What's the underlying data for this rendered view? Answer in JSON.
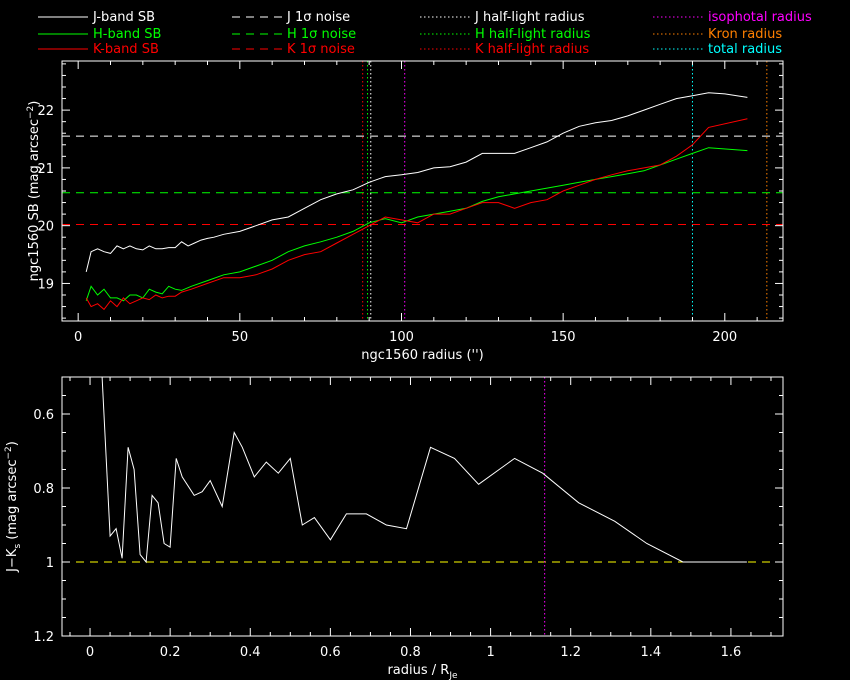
{
  "legend": [
    {
      "label": "J-band SB",
      "color": "#ffffff",
      "dash": "solid"
    },
    {
      "label": "H-band SB",
      "color": "#00ff00",
      "dash": "solid"
    },
    {
      "label": "K-band SB",
      "color": "#ff0000",
      "dash": "solid"
    },
    {
      "label": "J 1σ noise",
      "color": "#ffffff",
      "dash": "dashed"
    },
    {
      "label": "H 1σ noise",
      "color": "#00ff00",
      "dash": "dashed"
    },
    {
      "label": "K 1σ noise",
      "color": "#ff0000",
      "dash": "dashed"
    },
    {
      "label": "J half-light radius",
      "color": "#ffffff",
      "dash": "dotted"
    },
    {
      "label": "H half-light radius",
      "color": "#00ff00",
      "dash": "dotted"
    },
    {
      "label": "K half-light radius",
      "color": "#ff0000",
      "dash": "dotted"
    },
    {
      "label": "isophotal radius",
      "color": "#ff00ff",
      "dash": "dotted"
    },
    {
      "label": "Kron radius",
      "color": "#ff8000",
      "dash": "dotted"
    },
    {
      "label": "total radius",
      "color": "#00ffff",
      "dash": "dotted"
    }
  ],
  "chart_data": [
    {
      "type": "line",
      "xlabel": "ngc1560 radius ('')",
      "ylabel_main": "ngc1560 SB (mag arcsec",
      "ylabel_sup": "−2",
      "ylabel_close": ")",
      "xlim": [
        -5,
        218
      ],
      "ylim": [
        22.85,
        18.35
      ],
      "inverted_y": true,
      "xticks": [
        0,
        50,
        100,
        150,
        200
      ],
      "yticks": [
        19,
        20,
        21,
        22
      ],
      "series": [
        {
          "name": "J-band SB",
          "color": "#ffffff",
          "x": [
            2.5,
            4,
            6,
            8,
            10,
            12,
            14,
            16,
            18,
            20,
            22,
            24,
            26,
            28,
            30,
            32,
            34,
            36,
            38,
            40,
            42,
            45,
            50,
            55,
            60,
            65,
            70,
            75,
            80,
            85,
            90,
            95,
            100,
            105,
            110,
            115,
            120,
            125,
            130,
            135,
            140,
            145,
            150,
            155,
            160,
            165,
            170,
            175,
            180,
            185,
            190,
            195,
            200,
            207
          ],
          "y": [
            19.2,
            19.55,
            19.6,
            19.55,
            19.52,
            19.65,
            19.6,
            19.65,
            19.6,
            19.58,
            19.65,
            19.6,
            19.6,
            19.62,
            19.62,
            19.72,
            19.65,
            19.7,
            19.75,
            19.78,
            19.8,
            19.85,
            19.9,
            20.0,
            20.1,
            20.15,
            20.3,
            20.45,
            20.55,
            20.62,
            20.75,
            20.85,
            20.88,
            20.92,
            21.0,
            21.02,
            21.1,
            21.25,
            21.25,
            21.25,
            21.35,
            21.45,
            21.6,
            21.72,
            21.78,
            21.82,
            21.9,
            22.0,
            22.1,
            22.2,
            22.25,
            22.3,
            22.28,
            22.22
          ]
        },
        {
          "name": "H-band SB",
          "color": "#00ff00",
          "x": [
            2.5,
            4,
            6,
            8,
            10,
            12,
            14,
            16,
            18,
            20,
            22,
            24,
            26,
            28,
            30,
            32,
            35,
            40,
            45,
            50,
            55,
            60,
            65,
            70,
            75,
            80,
            85,
            90,
            95,
            100,
            105,
            110,
            115,
            120,
            125,
            130,
            135,
            140,
            145,
            150,
            155,
            160,
            165,
            170,
            175,
            180,
            185,
            190,
            195,
            207
          ],
          "y": [
            18.7,
            18.95,
            18.8,
            18.9,
            18.75,
            18.75,
            18.7,
            18.8,
            18.8,
            18.75,
            18.9,
            18.85,
            18.82,
            18.95,
            18.9,
            18.88,
            18.95,
            19.05,
            19.15,
            19.2,
            19.3,
            19.4,
            19.55,
            19.65,
            19.72,
            19.8,
            19.9,
            20.05,
            20.12,
            20.05,
            20.15,
            20.2,
            20.25,
            20.3,
            20.42,
            20.5,
            20.55,
            20.6,
            20.65,
            20.7,
            20.75,
            20.8,
            20.85,
            20.9,
            20.95,
            21.05,
            21.15,
            21.25,
            21.35,
            21.3
          ]
        },
        {
          "name": "K-band SB",
          "color": "#ff0000",
          "x": [
            2.5,
            4,
            6,
            8,
            10,
            12,
            14,
            16,
            18,
            20,
            22,
            24,
            26,
            28,
            30,
            32,
            35,
            40,
            45,
            50,
            55,
            60,
            65,
            70,
            75,
            80,
            85,
            90,
            95,
            100,
            105,
            110,
            115,
            120,
            125,
            130,
            135,
            140,
            145,
            150,
            155,
            160,
            165,
            170,
            175,
            180,
            185,
            190,
            195,
            207
          ],
          "y": [
            18.75,
            18.6,
            18.65,
            18.55,
            18.7,
            18.6,
            18.75,
            18.65,
            18.7,
            18.75,
            18.72,
            18.8,
            18.75,
            18.78,
            18.78,
            18.85,
            18.9,
            19.0,
            19.1,
            19.1,
            19.15,
            19.25,
            19.4,
            19.5,
            19.55,
            19.7,
            19.85,
            20.0,
            20.15,
            20.1,
            20.05,
            20.2,
            20.2,
            20.3,
            20.4,
            20.4,
            20.3,
            20.4,
            20.45,
            20.6,
            20.7,
            20.8,
            20.88,
            20.95,
            21.0,
            21.05,
            21.2,
            21.4,
            21.7,
            21.85
          ]
        }
      ],
      "hlines": [
        {
          "name": "J 1σ noise",
          "y": 21.55,
          "color": "#ffffff",
          "dash": "dashed"
        },
        {
          "name": "H 1σ noise",
          "y": 20.57,
          "color": "#00ff00",
          "dash": "dashed"
        },
        {
          "name": "K 1σ noise",
          "y": 20.02,
          "color": "#ff0000",
          "dash": "dashed"
        }
      ],
      "vlines": [
        {
          "name": "J half-light radius",
          "x": 90.5,
          "color": "#ffffff"
        },
        {
          "name": "H half-light radius",
          "x": 89.5,
          "color": "#00ff00"
        },
        {
          "name": "K half-light radius",
          "x": 88.0,
          "color": "#ff0000"
        },
        {
          "name": "isophotal radius",
          "x": 101.0,
          "color": "#ff00ff"
        },
        {
          "name": "Kron radius",
          "x": 213.0,
          "color": "#ff8000"
        },
        {
          "name": "total radius",
          "x": 190.0,
          "color": "#00ffff"
        }
      ]
    },
    {
      "type": "line",
      "xlabel_main": "radius / R",
      "xlabel_sub": "Je",
      "ylabel_main": "J−K",
      "ylabel_sub": "s",
      "ylabel_rest": " (mag arcsec",
      "ylabel_sup": "−2",
      "ylabel_close": ")",
      "xlim": [
        -0.07,
        1.73
      ],
      "ylim": [
        0.5,
        1.2
      ],
      "xticks": [
        0,
        0.2,
        0.4,
        0.6,
        0.8,
        1,
        1.2,
        1.4,
        1.6
      ],
      "xtick_labels": [
        "0",
        "0.2",
        "0.4",
        "0.6",
        "0.8",
        "1",
        "1.2",
        "1.4",
        "1.6"
      ],
      "yticks": [
        0.6,
        0.8,
        1,
        1.2
      ],
      "ytick_labels": [
        "0.6",
        "0.8",
        "1",
        "1.2"
      ],
      "series": [
        {
          "name": "J-Ks",
          "color": "#ffffff",
          "x": [
            0.03,
            0.05,
            0.065,
            0.08,
            0.095,
            0.11,
            0.125,
            0.14,
            0.155,
            0.17,
            0.185,
            0.2,
            0.215,
            0.23,
            0.26,
            0.28,
            0.3,
            0.33,
            0.36,
            0.38,
            0.41,
            0.44,
            0.47,
            0.5,
            0.53,
            0.56,
            0.6,
            0.64,
            0.69,
            0.74,
            0.79,
            0.85,
            0.91,
            0.97,
            1.06,
            1.13,
            1.22,
            1.31,
            1.39,
            1.48,
            1.56,
            1.64
          ],
          "y": [
            0.5,
            0.93,
            0.91,
            0.99,
            0.69,
            0.75,
            0.98,
            1.0,
            0.82,
            0.84,
            0.95,
            0.96,
            0.72,
            0.77,
            0.82,
            0.81,
            0.78,
            0.85,
            0.65,
            0.69,
            0.77,
            0.73,
            0.76,
            0.72,
            0.9,
            0.88,
            0.94,
            0.87,
            0.87,
            0.9,
            0.91,
            0.69,
            0.72,
            0.79,
            0.72,
            0.76,
            0.84,
            0.89,
            0.95,
            1.0,
            1.0,
            1.0
          ]
        }
      ],
      "hlines": [
        {
          "y": 1.0,
          "color": "#ffff00",
          "dash": "dashed"
        }
      ],
      "vlines": [
        {
          "x": 1.135,
          "color": "#ff00ff"
        }
      ]
    }
  ]
}
